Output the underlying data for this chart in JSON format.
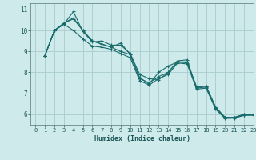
{
  "title": "",
  "xlabel": "Humidex (Indice chaleur)",
  "ylabel": "",
  "background_color": "#ceeaea",
  "grid_color": "#aacccc",
  "line_color": "#1a6b6b",
  "xlim": [
    -0.5,
    23
  ],
  "ylim": [
    5.5,
    11.3
  ],
  "xticks": [
    0,
    1,
    2,
    3,
    4,
    5,
    6,
    7,
    8,
    9,
    10,
    11,
    12,
    13,
    14,
    15,
    16,
    17,
    18,
    19,
    20,
    21,
    22,
    23
  ],
  "yticks": [
    6,
    7,
    8,
    9,
    10,
    11
  ],
  "series": [
    {
      "x": [
        1,
        2,
        3,
        4,
        5,
        6,
        7,
        8,
        9,
        10,
        11,
        12,
        13,
        14,
        15,
        16,
        17,
        18,
        19,
        20,
        21,
        22,
        23
      ],
      "y": [
        8.8,
        10.0,
        10.35,
        10.55,
        10.0,
        9.5,
        9.35,
        9.2,
        9.0,
        8.85,
        7.7,
        7.5,
        7.8,
        8.0,
        8.5,
        8.5,
        7.3,
        7.35,
        6.35,
        5.85,
        5.85,
        6.0,
        6.0
      ]
    },
    {
      "x": [
        1,
        2,
        3,
        4,
        5,
        6,
        7,
        8,
        9,
        10,
        11,
        12,
        13,
        14,
        15,
        16,
        17,
        18,
        19,
        20,
        21,
        22,
        23
      ],
      "y": [
        8.8,
        10.0,
        10.35,
        10.6,
        10.0,
        9.5,
        9.35,
        9.2,
        9.4,
        8.85,
        7.75,
        7.45,
        8.0,
        8.3,
        8.5,
        8.45,
        7.3,
        7.35,
        6.35,
        5.85,
        5.85,
        6.0,
        6.0
      ]
    },
    {
      "x": [
        1,
        2,
        3,
        4,
        5,
        6,
        7,
        8,
        9,
        10,
        11,
        12,
        13,
        14,
        15,
        16,
        17,
        18,
        19,
        20,
        21,
        22,
        23
      ],
      "y": [
        8.8,
        10.0,
        10.3,
        10.9,
        9.95,
        9.45,
        9.5,
        9.3,
        9.3,
        8.9,
        7.9,
        7.7,
        7.65,
        8.0,
        8.55,
        8.6,
        7.25,
        7.3,
        6.3,
        5.85,
        5.85,
        5.95,
        6.0
      ]
    },
    {
      "x": [
        1,
        2,
        3,
        4,
        5,
        6,
        7,
        8,
        9,
        10,
        11,
        12,
        13,
        14,
        15,
        16,
        17,
        18,
        19,
        20,
        21,
        22,
        23
      ],
      "y": [
        8.8,
        10.0,
        10.3,
        10.0,
        9.6,
        9.25,
        9.2,
        9.1,
        8.9,
        8.7,
        7.6,
        7.4,
        7.7,
        7.9,
        8.45,
        8.4,
        7.2,
        7.25,
        6.25,
        5.8,
        5.82,
        5.95,
        5.95
      ]
    }
  ]
}
